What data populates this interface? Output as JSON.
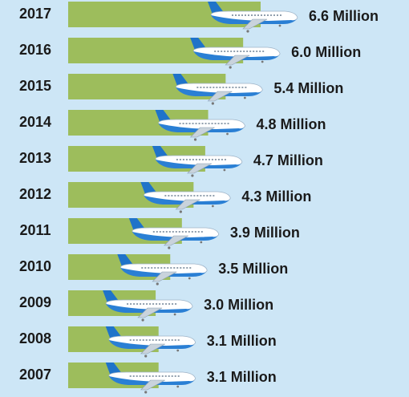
{
  "chart_data": {
    "type": "bar",
    "orientation": "horizontal",
    "categories": [
      "2017",
      "2016",
      "2015",
      "2014",
      "2013",
      "2012",
      "2011",
      "2010",
      "2009",
      "2008",
      "2007"
    ],
    "values": [
      6.6,
      6.0,
      5.4,
      4.8,
      4.7,
      4.3,
      3.9,
      3.5,
      3.0,
      3.1,
      3.1
    ],
    "value_labels": [
      "6.6 Million",
      "6.0 Million",
      "5.4 Million",
      "4.8 Million",
      "4.7 Million",
      "4.3 Million",
      "3.9 Million",
      "3.5 Million",
      "3.0 Million",
      "3.1 Million",
      "3.1 Million"
    ],
    "color": "#9dbd5c"
  }
}
